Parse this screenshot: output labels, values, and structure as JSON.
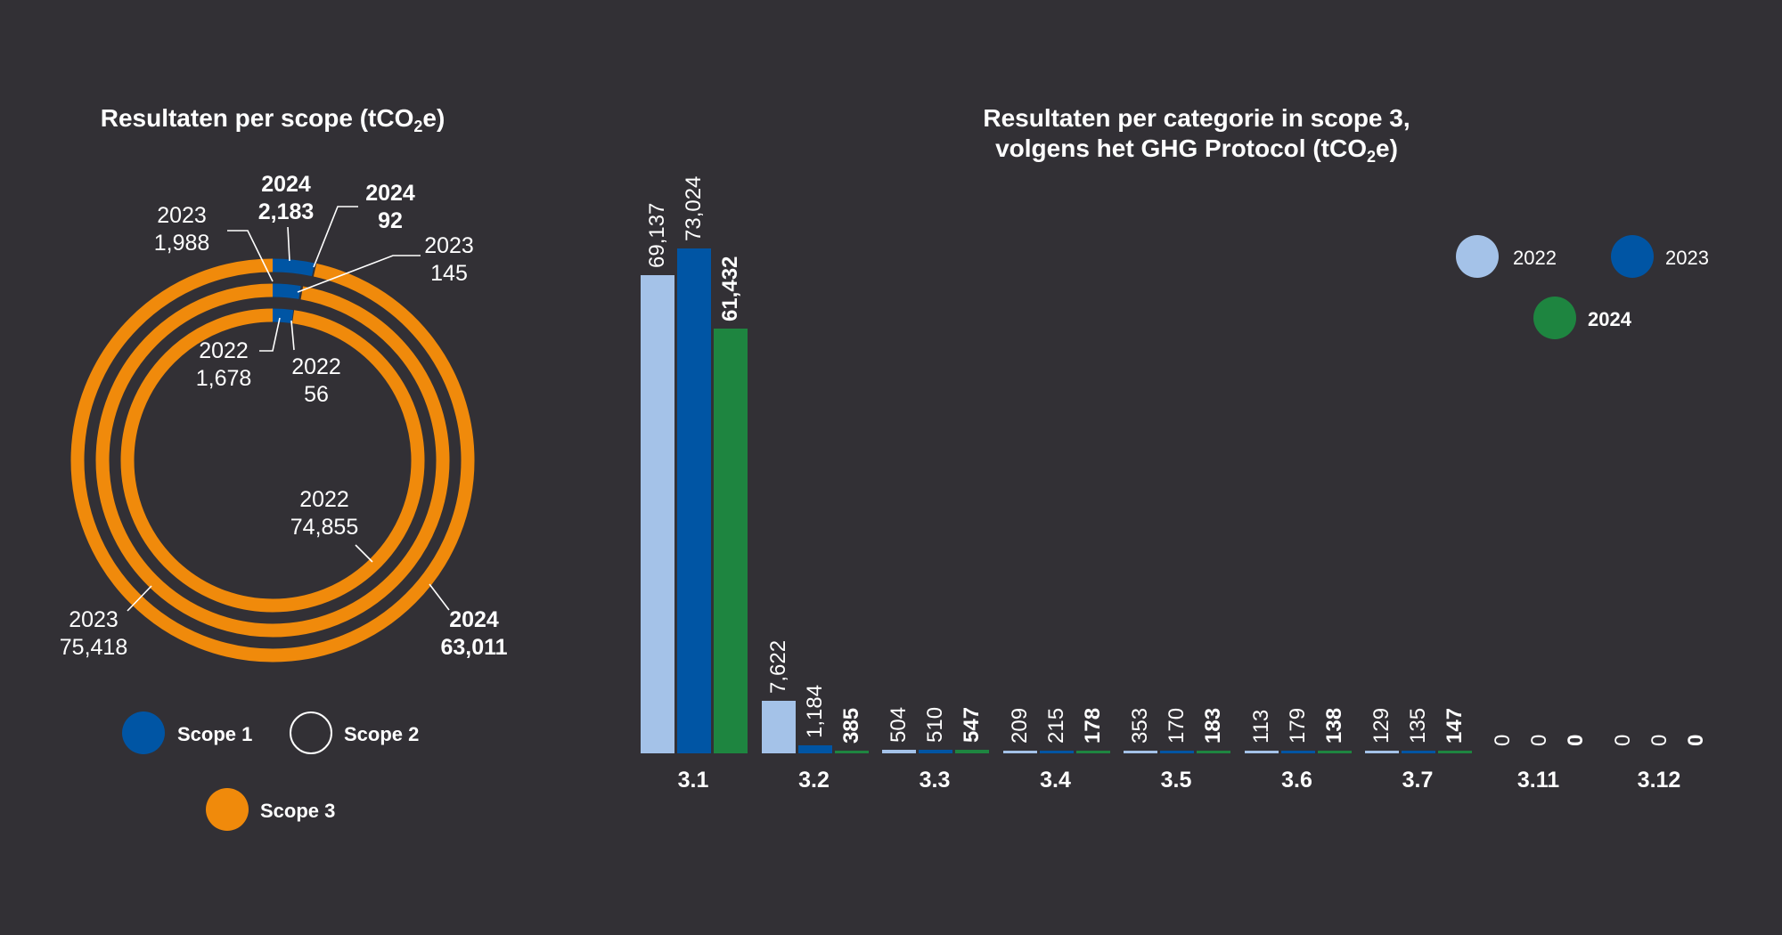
{
  "scope_chart": {
    "title": {
      "main": "Resultaten per scope (tCO",
      "sub": "2",
      "end": "e)"
    },
    "colors": {
      "scope1": "#0055a4",
      "scope2": "#323035",
      "scope3": "#f08a0b"
    },
    "rings": [
      {
        "year": "2024",
        "scope1": 2183,
        "scope2": 92,
        "scope3": 63011
      },
      {
        "year": "2023",
        "scope1": 1988,
        "scope2": 145,
        "scope3": 75418
      },
      {
        "year": "2022",
        "scope1": 1678,
        "scope2": 56,
        "scope3": 74855
      }
    ],
    "labels": {
      "s1_2024": {
        "year": "2024",
        "value": "2,183"
      },
      "s2_2024": {
        "year": "2024",
        "value": "92"
      },
      "s3_2024": {
        "year": "2024",
        "value": "63,011"
      },
      "s1_2023": {
        "year": "2023",
        "value": "1,988"
      },
      "s2_2023": {
        "year": "2023",
        "value": "145"
      },
      "s3_2023": {
        "year": "2023",
        "value": "75,418"
      },
      "s1_2022": {
        "year": "2022",
        "value": "1,678"
      },
      "s2_2022": {
        "year": "2022",
        "value": "56"
      },
      "s3_2022": {
        "year": "2022",
        "value": "74,855"
      }
    },
    "legend": [
      "Scope 1",
      "Scope 2",
      "Scope 3"
    ]
  },
  "chart_data": {
    "type": "bar",
    "title": {
      "line1": "Resultaten per categorie in scope 3,",
      "line2_main": "volgens het GHG Protocol (tCO",
      "line2_sub": "2",
      "line2_end": "e)"
    },
    "categories": [
      "3.1",
      "3.2",
      "3.3",
      "3.4",
      "3.5",
      "3.6",
      "3.7",
      "3.11",
      "3.12"
    ],
    "series": [
      {
        "name": "2022",
        "color": "#a4c2e8",
        "values": [
          69137,
          7622,
          504,
          209,
          353,
          113,
          129,
          0,
          0
        ],
        "labels": [
          "69,137",
          "7,622",
          "504",
          "209",
          "353",
          "113",
          "129",
          "0",
          "0"
        ]
      },
      {
        "name": "2023",
        "color": "#0055a4",
        "values": [
          73024,
          1184,
          510,
          215,
          170,
          179,
          135,
          0,
          0
        ],
        "labels": [
          "73,024",
          "1,184",
          "510",
          "215",
          "170",
          "179",
          "135",
          "0",
          "0"
        ]
      },
      {
        "name": "2024",
        "color": "#1e8540",
        "values": [
          61432,
          385,
          547,
          178,
          183,
          138,
          147,
          0,
          0
        ],
        "labels": [
          "61,432",
          "385",
          "547",
          "178",
          "183",
          "138",
          "147",
          "0",
          "0"
        ]
      }
    ],
    "ylim": [
      0,
      73024
    ],
    "grid": false,
    "legend_position": "top-right"
  }
}
